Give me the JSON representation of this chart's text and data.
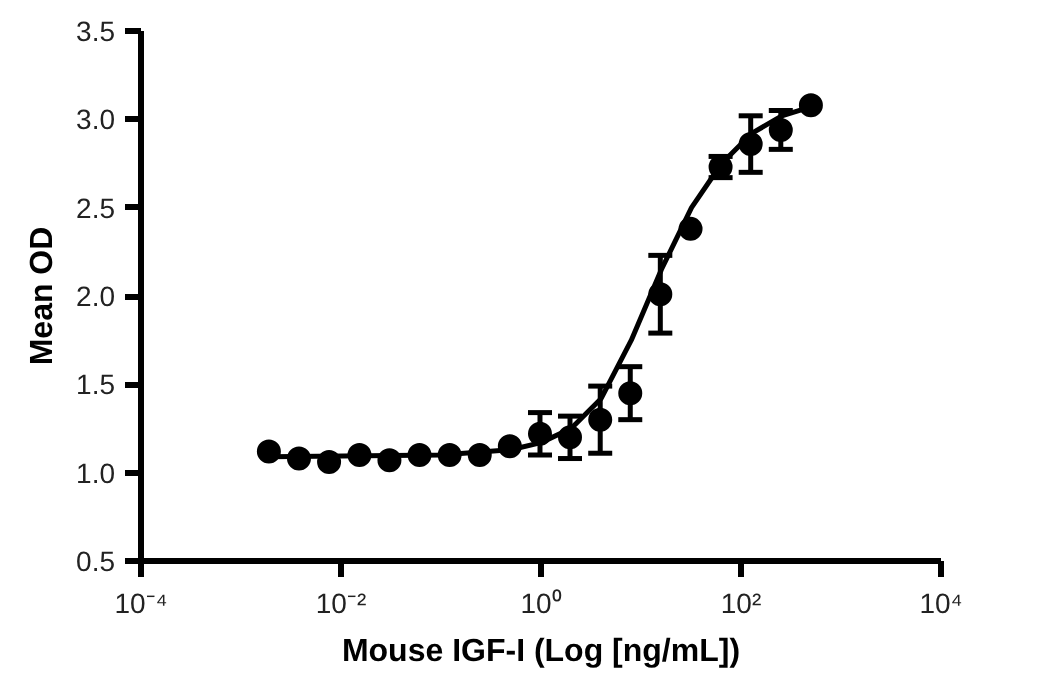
{
  "chart_data": {
    "type": "scatter",
    "xlabel": "Mouse IGF-I (Log [ng/mL])",
    "ylabel": "Mean OD",
    "log": "x",
    "grid": false,
    "marker": "circle",
    "xlim": [
      0.0001,
      10000
    ],
    "xticks": [
      {
        "value": 0.0001,
        "label": "10⁻⁴"
      },
      {
        "value": 0.01,
        "label": "10⁻²"
      },
      {
        "value": 1,
        "label": "10⁰"
      },
      {
        "value": 100,
        "label": "10²"
      },
      {
        "value": 10000,
        "label": "10⁴"
      }
    ],
    "ylim": [
      0.5,
      3.5
    ],
    "yticks": [
      0.5,
      {
        "value": 1,
        "label": "1.0"
      },
      1.5,
      {
        "value": 2,
        "label": "2.0"
      },
      2.5,
      {
        "value": 3,
        "label": "3.0"
      },
      3.5
    ],
    "x": [
      0.0019,
      0.0038,
      0.0076,
      0.0153,
      0.0305,
      0.061,
      0.122,
      0.244,
      0.488,
      0.977,
      1.95,
      3.91,
      7.81,
      15.6,
      31.3,
      62.5,
      125,
      250,
      500
    ],
    "series": [
      {
        "color": "#000000",
        "values": [
          1.12,
          1.08,
          1.06,
          1.1,
          1.07,
          1.1,
          1.1,
          1.1,
          1.15,
          1.22,
          1.2,
          1.3,
          1.45,
          2.01,
          2.38,
          2.73,
          2.86,
          2.94,
          3.08
        ],
        "errors": [
          null,
          null,
          null,
          null,
          null,
          null,
          null,
          null,
          null,
          0.12,
          0.12,
          0.19,
          0.15,
          0.22,
          null,
          0.06,
          0.16,
          0.11,
          null
        ]
      },
      {
        "type": "line",
        "color": "#000000",
        "marker": "none",
        "x": [
          0.0019,
          0.1,
          0.5,
          1,
          2,
          4,
          8,
          16,
          32,
          64,
          128,
          256,
          500
        ],
        "values": [
          1.09,
          1.1,
          1.13,
          1.17,
          1.25,
          1.42,
          1.75,
          2.15,
          2.5,
          2.75,
          2.92,
          3.02,
          3.07
        ]
      }
    ]
  }
}
